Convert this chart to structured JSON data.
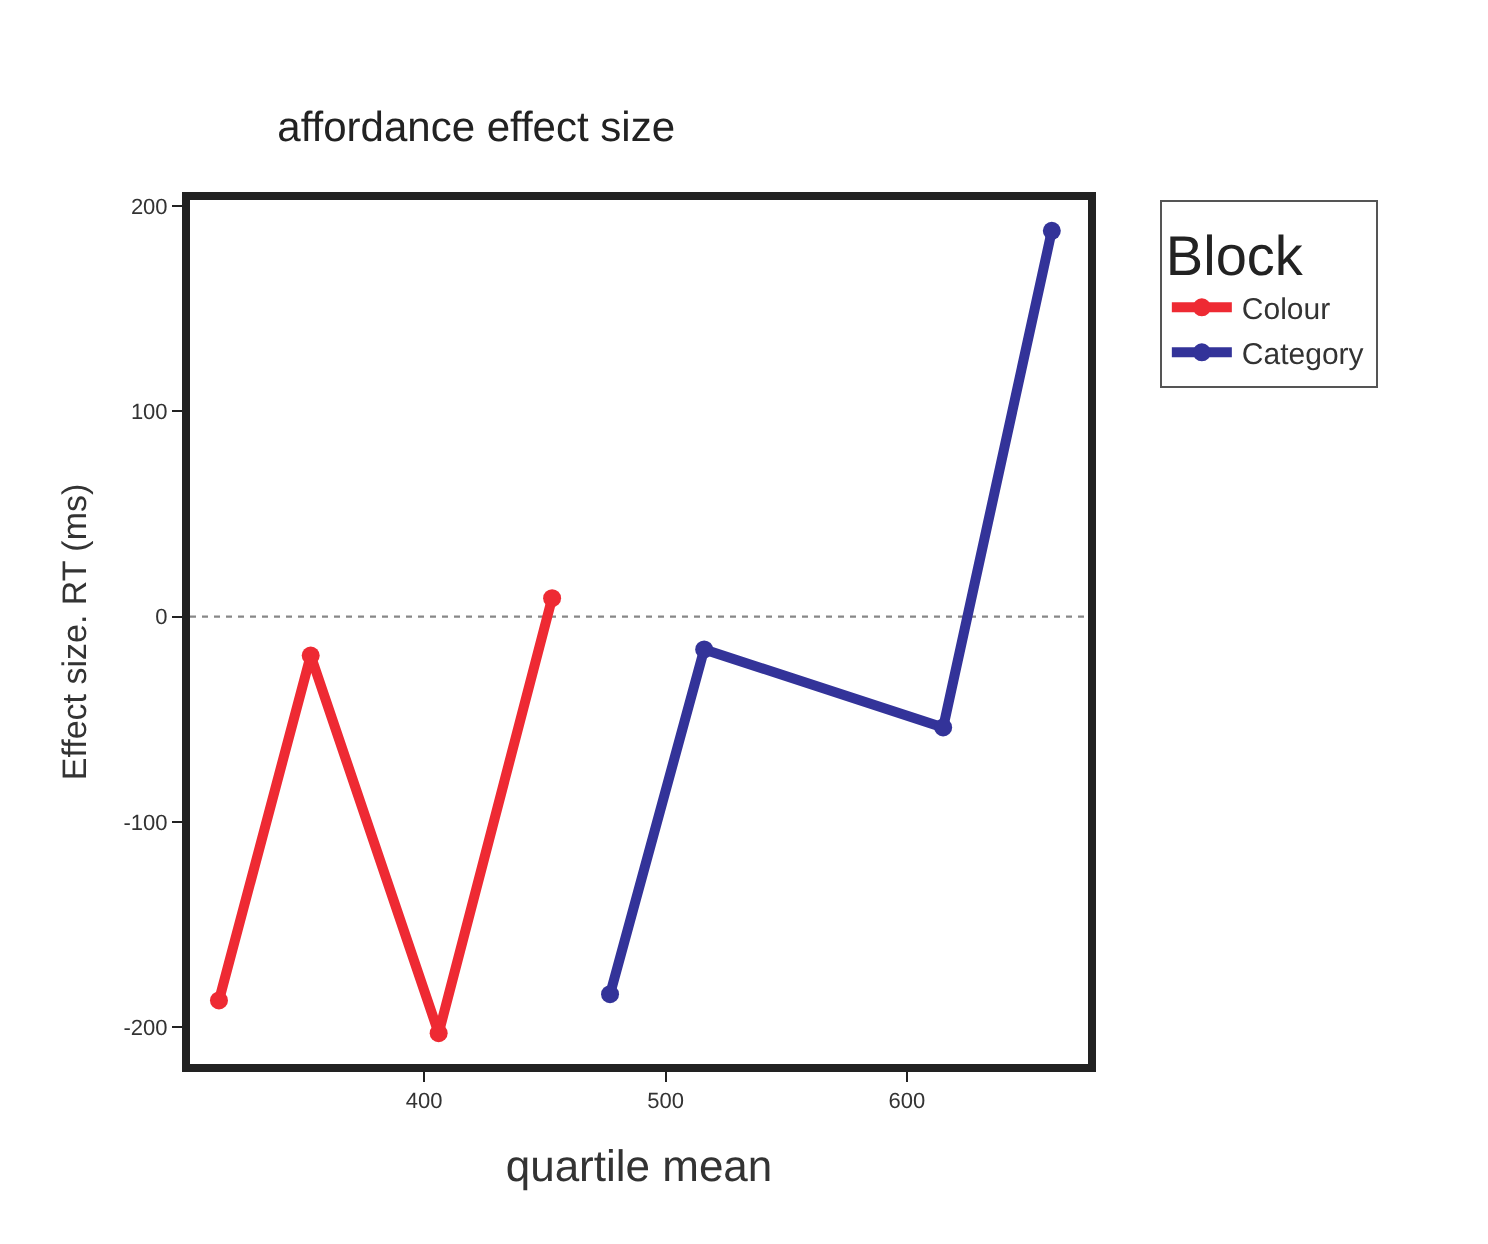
{
  "chart_data": {
    "type": "line",
    "title": "affordance effect size",
    "xlabel": "quartile mean",
    "ylabel": "Effect size. RT (ms)",
    "legend_title": "Block",
    "series": [
      {
        "name": "Colour",
        "color": "#ee2a33",
        "x": [
          315,
          353,
          406,
          453
        ],
        "values": [
          -187,
          -19,
          -203,
          9
        ]
      },
      {
        "name": "Category",
        "color": "#333399",
        "x": [
          477,
          516,
          615,
          660
        ],
        "values": [
          -184,
          -16,
          -54,
          188
        ]
      }
    ],
    "xlim": [
      303,
      675
    ],
    "ylim": [
      -218,
      203
    ],
    "xticks": [
      400,
      500,
      600
    ],
    "yticks": [
      -200,
      -100,
      0,
      100,
      200
    ],
    "ref_lines": [
      {
        "axis": "y",
        "value": 0,
        "color": "#888888",
        "line_style": "dotted"
      }
    ],
    "grid": false,
    "legend": "top right",
    "marker": "circle"
  }
}
